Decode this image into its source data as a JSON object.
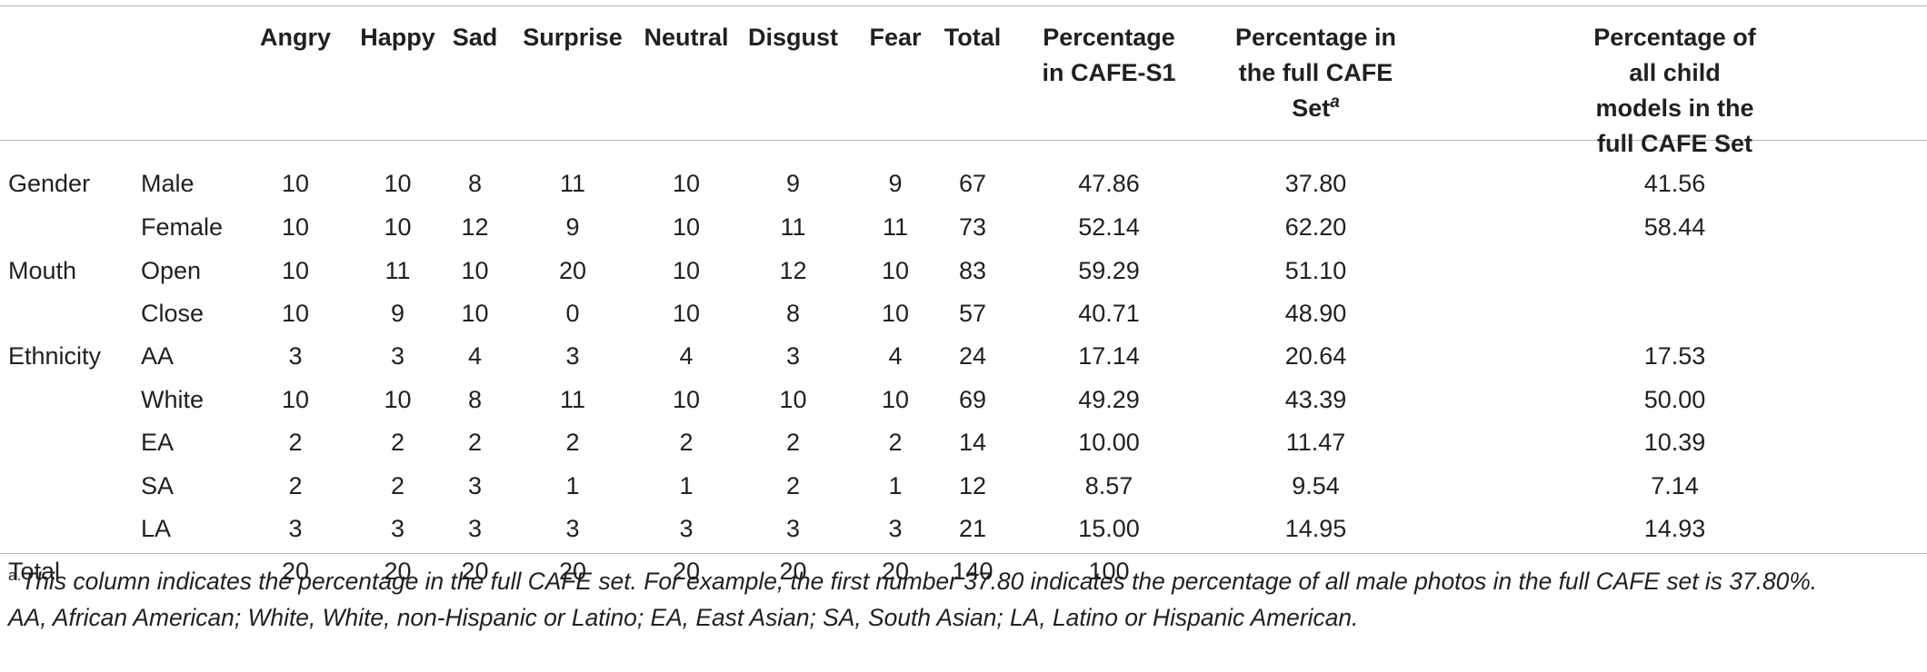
{
  "table": {
    "headers": [
      "",
      "",
      "Angry",
      "Happy",
      "Sad",
      "Surprise",
      "Neutral",
      "Disgust",
      "Fear",
      "Total",
      "Percentage in CAFE-S1",
      "Percentage in the full CAFE Set",
      "Percentage of all child models in the full CAFE Set"
    ],
    "header_footnote_mark": "a",
    "rows": [
      [
        "Gender",
        "Male",
        "10",
        "10",
        "8",
        "11",
        "10",
        "9",
        "9",
        "67",
        "47.86",
        "37.80",
        "41.56"
      ],
      [
        "",
        "Female",
        "10",
        "10",
        "12",
        "9",
        "10",
        "11",
        "11",
        "73",
        "52.14",
        "62.20",
        "58.44"
      ],
      [
        "Mouth",
        "Open",
        "10",
        "11",
        "10",
        "20",
        "10",
        "12",
        "10",
        "83",
        "59.29",
        "51.10",
        ""
      ],
      [
        "",
        "Close",
        "10",
        "9",
        "10",
        "0",
        "10",
        "8",
        "10",
        "57",
        "40.71",
        "48.90",
        ""
      ],
      [
        "Ethnicity",
        "AA",
        "3",
        "3",
        "4",
        "3",
        "4",
        "3",
        "4",
        "24",
        "17.14",
        "20.64",
        "17.53"
      ],
      [
        "",
        "White",
        "10",
        "10",
        "8",
        "11",
        "10",
        "10",
        "10",
        "69",
        "49.29",
        "43.39",
        "50.00"
      ],
      [
        "",
        "EA",
        "2",
        "2",
        "2",
        "2",
        "2",
        "2",
        "2",
        "14",
        "10.00",
        "11.47",
        "10.39"
      ],
      [
        "",
        "SA",
        "2",
        "2",
        "3",
        "1",
        "1",
        "2",
        "1",
        "12",
        "8.57",
        "9.54",
        "7.14"
      ],
      [
        "",
        "LA",
        "3",
        "3",
        "3",
        "3",
        "3",
        "3",
        "3",
        "21",
        "15.00",
        "14.95",
        "14.93"
      ],
      [
        "Total",
        "",
        "20",
        "20",
        "20",
        "20",
        "20",
        "20",
        "20",
        "140",
        "100",
        "",
        ""
      ]
    ]
  },
  "footnotes": {
    "mark": "a.",
    "note_a": "This column indicates the percentage in the full CAFE set. For example, the first number 37.80 indicates the percentage of all male photos in the full CAFE set is 37.80%.",
    "abbreviations": "AA, African American; White, White, non-Hispanic or Latino; EA, East Asian; SA, South Asian; LA, Latino or Hispanic American."
  }
}
